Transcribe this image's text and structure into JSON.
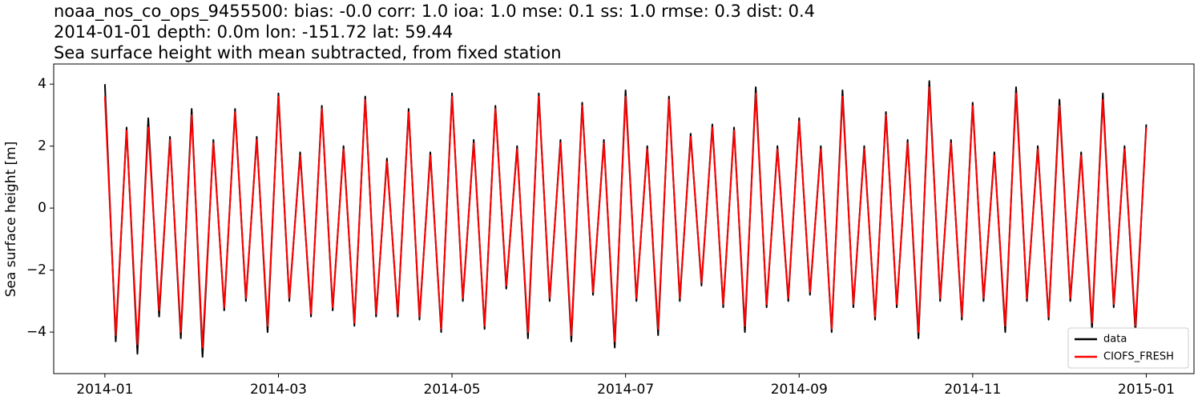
{
  "chart_data": {
    "type": "line",
    "title": "noaa_nos_co_ops_9455500: bias: -0.0  corr: 1.0  ioa: 1.0  mse: 0.1  ss: 1.0  rmse: 0.3  dist: 0.4",
    "subtitle": "2014-01-01 depth: 0.0m lon: -151.72 lat: 59.44",
    "description": "Sea surface height with mean subtracted, from fixed station",
    "y_label": "Sea surface height [m]",
    "x": [
      0,
      0.125,
      0.25,
      0.375,
      0.5,
      0.625,
      0.75,
      0.875,
      1,
      1.125,
      1.25,
      1.375,
      1.5,
      1.625,
      1.75,
      1.875,
      2,
      2.125,
      2.25,
      2.375,
      2.5,
      2.625,
      2.75,
      2.875,
      3,
      3.125,
      3.25,
      3.375,
      3.5,
      3.625,
      3.75,
      3.875,
      4,
      4.125,
      4.25,
      4.375,
      4.5,
      4.625,
      4.75,
      4.875,
      5,
      5.125,
      5.25,
      5.375,
      5.5,
      5.625,
      5.75,
      5.875,
      6,
      6.125,
      6.25,
      6.375,
      6.5,
      6.625,
      6.75,
      6.875,
      7,
      7.125,
      7.25,
      7.375,
      7.5,
      7.625,
      7.75,
      7.875,
      8,
      8.125,
      8.25,
      8.375,
      8.5,
      8.625,
      8.75,
      8.875,
      9,
      9.125,
      9.25,
      9.375,
      9.5,
      9.625,
      9.75,
      9.875,
      10,
      10.125,
      10.25,
      10.375,
      10.5,
      10.625,
      10.75,
      10.875,
      11,
      11.125,
      11.25,
      11.375,
      11.5,
      11.625,
      11.75,
      11.875,
      12
    ],
    "series": [
      {
        "name": "data",
        "color": "#000000",
        "values": [
          4.0,
          -4.3,
          2.6,
          -4.7,
          2.9,
          -3.5,
          2.3,
          -4.2,
          3.2,
          -4.8,
          2.2,
          -3.3,
          3.2,
          -3.0,
          2.3,
          -4.0,
          3.7,
          -3.0,
          1.8,
          -3.5,
          3.3,
          -3.3,
          2.0,
          -3.8,
          3.6,
          -3.5,
          1.6,
          -3.5,
          3.2,
          -3.6,
          1.8,
          -4.0,
          3.7,
          -3.0,
          2.2,
          -3.9,
          3.3,
          -2.6,
          2.0,
          -4.2,
          3.7,
          -3.0,
          2.2,
          -4.3,
          3.4,
          -2.8,
          2.2,
          -4.5,
          3.8,
          -3.0,
          2.0,
          -4.1,
          3.6,
          -3.0,
          2.4,
          -2.5,
          2.7,
          -3.2,
          2.6,
          -4.0,
          3.9,
          -3.2,
          2.0,
          -3.0,
          2.9,
          -2.8,
          2.0,
          -4.0,
          3.8,
          -3.2,
          2.0,
          -3.6,
          3.1,
          -3.2,
          2.2,
          -4.2,
          4.1,
          -3.0,
          2.2,
          -3.6,
          3.4,
          -3.0,
          1.8,
          -4.0,
          3.9,
          -3.0,
          2.0,
          -3.6,
          3.5,
          -3.0,
          1.8,
          -3.9,
          3.7,
          -3.2,
          2.0,
          -4.0,
          2.7
        ]
      },
      {
        "name": "CIOFS_FRESH",
        "color": "#ff0000",
        "values": [
          3.6,
          -4.1,
          2.5,
          -4.4,
          2.6,
          -3.3,
          2.2,
          -4.0,
          3.0,
          -4.5,
          2.1,
          -3.2,
          3.1,
          -2.9,
          2.2,
          -3.8,
          3.6,
          -2.9,
          1.7,
          -3.4,
          3.2,
          -3.2,
          1.9,
          -3.7,
          3.5,
          -3.4,
          1.5,
          -3.4,
          3.1,
          -3.5,
          1.7,
          -3.9,
          3.6,
          -2.9,
          2.1,
          -3.8,
          3.2,
          -2.5,
          1.9,
          -4.0,
          3.6,
          -2.9,
          2.1,
          -4.1,
          3.3,
          -2.7,
          2.1,
          -4.3,
          3.6,
          -2.9,
          1.9,
          -3.9,
          3.5,
          -2.9,
          2.3,
          -2.4,
          2.6,
          -3.1,
          2.5,
          -3.8,
          3.7,
          -3.1,
          1.9,
          -2.9,
          2.8,
          -2.7,
          1.9,
          -3.9,
          3.6,
          -3.1,
          1.9,
          -3.5,
          3.0,
          -3.1,
          2.1,
          -4.0,
          3.9,
          -2.9,
          2.1,
          -3.5,
          3.3,
          -2.9,
          1.7,
          -3.8,
          3.7,
          -2.9,
          1.9,
          -3.5,
          3.3,
          -2.9,
          1.7,
          -3.7,
          3.5,
          -3.1,
          1.9,
          -3.8,
          2.6
        ]
      }
    ],
    "xlim": [
      -0.59,
      12.55
    ],
    "xticks": [
      {
        "value": 0,
        "label": "2014-01"
      },
      {
        "value": 2,
        "label": "2014-03"
      },
      {
        "value": 4,
        "label": "2014-05"
      },
      {
        "value": 6,
        "label": "2014-07"
      },
      {
        "value": 8,
        "label": "2014-09"
      },
      {
        "value": 10,
        "label": "2014-11"
      },
      {
        "value": 12,
        "label": "2015-01"
      }
    ],
    "ylim": [
      -5.34,
      4.65
    ],
    "yticks": [
      {
        "value": -4,
        "label": "−4"
      },
      {
        "value": -2,
        "label": "−2"
      },
      0,
      2,
      4
    ],
    "grid": false,
    "legend": "lower right"
  }
}
